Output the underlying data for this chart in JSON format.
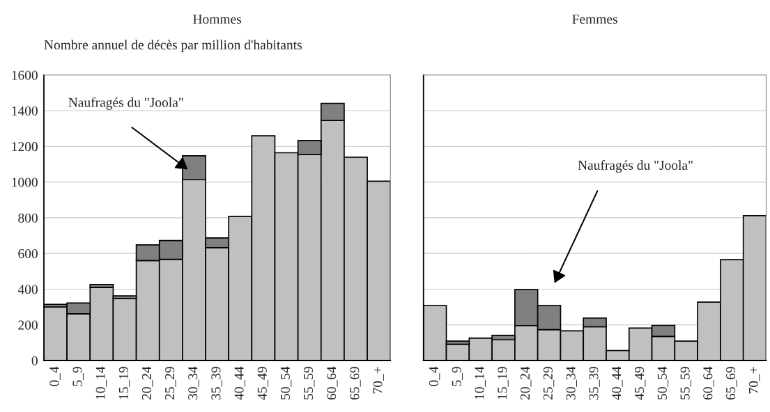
{
  "chart_data": [
    {
      "type": "bar",
      "title": "Hommes",
      "subtitle": "Nombre annuel de décès par million d'habitants",
      "stacked": true,
      "categories": [
        "0_4",
        "5_9",
        "10_14",
        "15_19",
        "20_24",
        "25_29",
        "30_34",
        "35_39",
        "40_44",
        "45_49",
        "50_54",
        "55_59",
        "60_64",
        "65_69",
        "70_+"
      ],
      "series": [
        {
          "color": "#c0c0c0",
          "values": [
            300,
            262,
            410,
            348,
            560,
            567,
            1013,
            632,
            808,
            1259,
            1164,
            1154,
            1345,
            1139,
            1005
          ]
        },
        {
          "color": "#808080",
          "values": [
            15,
            60,
            16,
            14,
            88,
            105,
            134,
            55,
            null,
            null,
            null,
            79,
            96,
            null,
            null
          ]
        }
      ],
      "ylim": [
        0,
        1600
      ],
      "yticks": [
        0,
        200,
        400,
        600,
        800,
        1000,
        1200,
        1400,
        1600
      ],
      "grid": "y",
      "annotations": [
        "Naufragés du \"Joola\""
      ]
    },
    {
      "type": "bar",
      "title": "Femmes",
      "stacked": true,
      "categories": [
        "0_4",
        "5_9",
        "10_14",
        "15_19",
        "20_24",
        "25_29",
        "30_34",
        "35_39",
        "40_44",
        "45_49",
        "50_54",
        "55_59",
        "60_64",
        "65_69",
        "70_+"
      ],
      "series": [
        {
          "color": "#c0c0c0",
          "values": [
            309,
            91,
            125,
            116,
            196,
            173,
            166,
            189,
            56,
            182,
            135,
            109,
            327,
            565,
            812
          ]
        },
        {
          "color": "#808080",
          "values": [
            null,
            18,
            null,
            25,
            201,
            136,
            null,
            49,
            null,
            null,
            62,
            null,
            null,
            null,
            null
          ]
        }
      ],
      "ylim": [
        0,
        1600
      ],
      "yticks": [
        0,
        200,
        400,
        600,
        800,
        1000,
        1200,
        1400,
        1600
      ],
      "grid": "y",
      "tick_labels": "x",
      "annotations": [
        "Naufragés du \"Joola\""
      ]
    }
  ]
}
